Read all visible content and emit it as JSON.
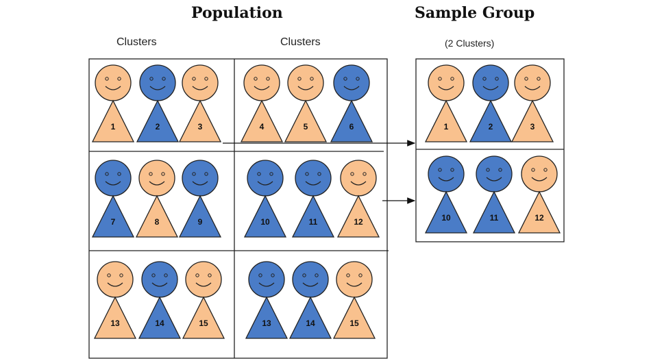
{
  "titles": {
    "population": "Population",
    "sample": "Sample Group"
  },
  "labels": {
    "clusters_left": "Clusters",
    "clusters_right": "Clusters",
    "sample_subtitle": "(2 Clusters)"
  },
  "colors": {
    "orange": "#F9C18E",
    "blue": "#4A7CC7",
    "outline": "#222222"
  },
  "population_clusters": [
    {
      "people": [
        {
          "n": "1",
          "c": "orange"
        },
        {
          "n": "2",
          "c": "blue"
        },
        {
          "n": "3",
          "c": "orange"
        }
      ]
    },
    {
      "people": [
        {
          "n": "4",
          "c": "orange"
        },
        {
          "n": "5",
          "c": "orange"
        },
        {
          "n": "6",
          "c": "blue"
        }
      ]
    },
    {
      "people": [
        {
          "n": "7",
          "c": "blue"
        },
        {
          "n": "8",
          "c": "orange"
        },
        {
          "n": "9",
          "c": "blue"
        }
      ]
    },
    {
      "people": [
        {
          "n": "10",
          "c": "blue"
        },
        {
          "n": "11",
          "c": "blue"
        },
        {
          "n": "12",
          "c": "orange"
        }
      ]
    },
    {
      "people": [
        {
          "n": "13",
          "c": "orange"
        },
        {
          "n": "14",
          "c": "blue"
        },
        {
          "n": "15",
          "c": "orange"
        }
      ]
    },
    {
      "people": [
        {
          "n": "13",
          "c": "blue"
        },
        {
          "n": "14",
          "c": "blue"
        },
        {
          "n": "15",
          "c": "orange"
        }
      ]
    }
  ],
  "sample_clusters": [
    {
      "people": [
        {
          "n": "1",
          "c": "orange"
        },
        {
          "n": "2",
          "c": "blue"
        },
        {
          "n": "3",
          "c": "orange"
        }
      ]
    },
    {
      "people": [
        {
          "n": "10",
          "c": "blue"
        },
        {
          "n": "11",
          "c": "blue"
        },
        {
          "n": "12",
          "c": "orange"
        }
      ]
    }
  ]
}
